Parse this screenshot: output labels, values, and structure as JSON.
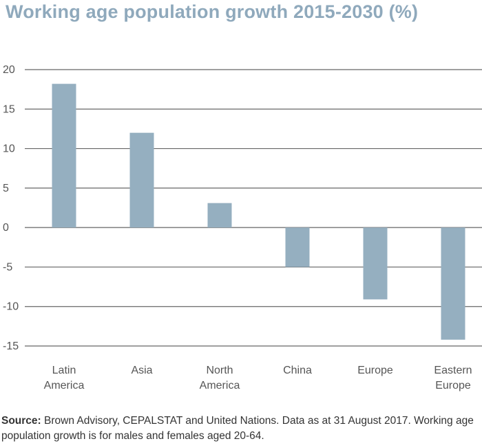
{
  "chart_data": {
    "type": "bar",
    "title": "Working age population growth 2015-2030 (%)",
    "categories": [
      [
        "Latin",
        "America"
      ],
      [
        "Asia"
      ],
      [
        "North",
        "America"
      ],
      [
        "China"
      ],
      [
        "Europe"
      ],
      [
        "Eastern",
        "Europe"
      ]
    ],
    "values": [
      18.2,
      12.0,
      3.1,
      -5.0,
      -9.1,
      -14.2
    ],
    "ylim": [
      -15,
      20
    ],
    "yticks": [
      20,
      15,
      10,
      5,
      0,
      -5,
      -10,
      -15
    ],
    "grid": true,
    "bar_color": "#95afc0",
    "grid_color": "#666666"
  },
  "source": {
    "label": "Source:",
    "text": " Brown Advisory, CEPALSTAT and United Nations. Data as at 31 August 2017. Working age population growth is for males and females aged 20-64."
  }
}
